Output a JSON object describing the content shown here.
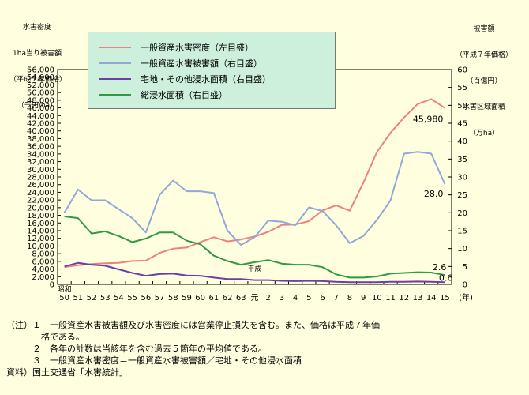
{
  "chart_data": {
    "type": "line",
    "y_left": {
      "title_lines": [
        "水害密度",
        "1ha当り被害額",
        "（平成７年価格）",
        "（千円/ha）"
      ],
      "ticks": [
        "0",
        "2,000",
        "4,000",
        "6,000",
        "8,000",
        "10,000",
        "12,000",
        "14,000",
        "16,000",
        "18,000",
        "20,000",
        "22,000",
        "24,000",
        "26,000",
        "28,000",
        "30,000",
        "32,000",
        "34,000",
        "36,000",
        "38,000",
        "40,000",
        "42,000",
        "44,000",
        "46,000",
        "48,000",
        "50,000",
        "52,000",
        "54,000",
        "56,000"
      ],
      "range": [
        0,
        56000
      ]
    },
    "y_right": {
      "title_lines": [
        "被害額",
        "（平成７年価格）",
        "（百億円）",
        "水害区域面積",
        "（万ha）"
      ],
      "ticks": [
        "0",
        "5",
        "10",
        "15",
        "20",
        "25",
        "30",
        "35",
        "40",
        "45",
        "50",
        "55",
        "60"
      ],
      "range": [
        0,
        60
      ]
    },
    "x": {
      "era_labels": [
        "昭和",
        "平成",
        "元"
      ],
      "tick_labels": [
        "50",
        "51",
        "52",
        "53",
        "54",
        "55",
        "56",
        "57",
        "58",
        "59",
        "60",
        "61",
        "62",
        "63",
        "元",
        "2",
        "3",
        "4",
        "5",
        "6",
        "7",
        "8",
        "9",
        "10",
        "11",
        "12",
        "13",
        "14",
        "15"
      ],
      "unit": "(年)"
    },
    "series": [
      {
        "name": "一般資産水害密度（左目盛）",
        "axis": "left",
        "color": "#f08080",
        "values": [
          4500,
          5000,
          5300,
          5500,
          5600,
          6100,
          6200,
          8200,
          9300,
          9600,
          11000,
          12300,
          11200,
          11700,
          12500,
          13700,
          15500,
          15600,
          16500,
          19300,
          20600,
          19200,
          26500,
          34500,
          39500,
          43500,
          47000,
          48300,
          45980
        ]
      },
      {
        "name": "一般資産水害被害額（右目盛）",
        "axis": "right",
        "color": "#8fa8d8",
        "values": [
          20,
          26.5,
          23.5,
          23.5,
          21,
          18.5,
          14.5,
          25,
          29,
          26,
          26,
          25.5,
          15,
          11,
          13.2,
          17.8,
          17.5,
          16.5,
          21.5,
          20.5,
          16.5,
          11.5,
          13.5,
          18,
          23.5,
          36.5,
          37,
          36.5,
          28.0
        ]
      },
      {
        "name": "宅地・その他浸水面積（右目盛）",
        "axis": "right",
        "color": "#6a3fa8",
        "values": [
          5,
          6,
          5.5,
          5.2,
          4.2,
          3.2,
          2.4,
          2.9,
          3.0,
          2.5,
          2.4,
          1.9,
          1.5,
          1.5,
          1.2,
          1.2,
          1.0,
          0.9,
          1.0,
          0.9,
          0.7,
          0.6,
          0.6,
          0.6,
          0.7,
          0.7,
          0.8,
          0.7,
          0.6
        ]
      },
      {
        "name": "総浸水面積（右目盛）",
        "axis": "right",
        "color": "#2e9a46",
        "values": [
          19,
          18.5,
          14.2,
          14.8,
          13.5,
          11.8,
          12.8,
          14.5,
          14.5,
          12.2,
          11.2,
          8.0,
          6.5,
          5.5,
          6.2,
          6.8,
          5.8,
          5.5,
          5.5,
          4.8,
          2.8,
          1.9,
          1.9,
          2.2,
          3.0,
          3.2,
          3.4,
          3.3,
          2.6
        ]
      }
    ],
    "annotations": [
      "45,980",
      "28.0",
      "2.6",
      "0.6"
    ],
    "legend_position": "top-left",
    "grid": false
  },
  "notes": {
    "lines": [
      "（注）１　一般資産水害被害額及び水害密度には営業停止損失を含む。また、価格は平成７年価",
      "　　　　格である。",
      "　　　２　各年の計数は当該年を含む過去５箇年の平均値である。",
      "　　　３　一般資産水害密度＝一般資産水害被害額／宅地・その他浸水面積",
      "資料）国土交通省「水害統計」"
    ]
  },
  "colors": {
    "background": "#ffffe0",
    "legend_background": "#ccf0dc"
  }
}
